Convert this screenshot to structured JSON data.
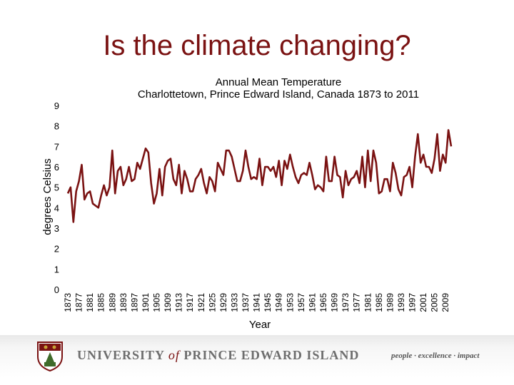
{
  "slide": {
    "title": "Is the climate changing?"
  },
  "chart_data": {
    "type": "line",
    "title": "Annual Mean Temperature",
    "subtitle": "Charlottetown, Prince Edward Island, Canada  1873 to 2011",
    "xlabel": "Year",
    "ylabel": "degrees Celsius",
    "ylim": [
      0,
      9
    ],
    "yticks": [
      0,
      1,
      2,
      3,
      4,
      5,
      6,
      7,
      8,
      9
    ],
    "xticks": [
      "1873",
      "1877",
      "1881",
      "1885",
      "1889",
      "1893",
      "1897",
      "1901",
      "1905",
      "1909",
      "1913",
      "1917",
      "1921",
      "1925",
      "1929",
      "1933",
      "1937",
      "1941",
      "1945",
      "1949",
      "1953",
      "1957",
      "1961",
      "1965",
      "1969",
      "1973",
      "1977",
      "1981",
      "1985",
      "1989",
      "1993",
      "1997",
      "2001",
      "2005",
      "2009"
    ],
    "x_start": 1873,
    "x_end": 2011,
    "line_color": "#7a1212",
    "series": [
      {
        "name": "Annual Mean Temperature",
        "values": [
          4.7,
          5.0,
          3.3,
          4.8,
          5.3,
          6.1,
          4.4,
          4.7,
          4.8,
          4.2,
          4.1,
          4.0,
          4.6,
          5.1,
          4.6,
          5.0,
          6.8,
          4.7,
          5.8,
          6.0,
          5.1,
          5.4,
          6.0,
          5.3,
          5.4,
          6.2,
          5.9,
          6.4,
          6.9,
          6.7,
          5.2,
          4.2,
          4.7,
          5.9,
          4.6,
          6.0,
          6.3,
          6.4,
          5.4,
          5.1,
          6.1,
          4.7,
          5.8,
          5.4,
          4.8,
          4.8,
          5.4,
          5.6,
          5.9,
          5.2,
          4.7,
          5.5,
          5.3,
          4.8,
          6.2,
          5.9,
          5.6,
          6.8,
          6.8,
          6.5,
          5.9,
          5.3,
          5.3,
          5.8,
          6.8,
          6.0,
          5.4,
          5.5,
          5.4,
          6.4,
          5.1,
          6.0,
          6.0,
          5.8,
          6.0,
          5.5,
          6.3,
          5.1,
          6.3,
          5.9,
          6.6,
          6.0,
          5.5,
          5.2,
          5.6,
          5.7,
          5.6,
          6.2,
          5.6,
          4.9,
          5.1,
          5.0,
          4.8,
          6.5,
          5.3,
          5.3,
          6.5,
          5.6,
          5.5,
          4.5,
          5.8,
          5.1,
          5.4,
          5.5,
          5.8,
          5.2,
          6.5,
          5.0,
          6.8,
          5.3,
          6.8,
          6.2,
          4.7,
          4.8,
          5.4,
          5.4,
          4.8,
          6.2,
          5.7,
          4.9,
          4.6,
          5.5,
          5.6,
          6.0,
          5.0,
          6.5,
          7.6,
          6.2,
          6.6,
          6.0,
          6.0,
          5.7,
          6.4,
          7.6,
          5.8,
          6.6,
          6.2,
          7.8,
          7.0
        ]
      }
    ]
  },
  "footer": {
    "university_part1": "UNIVERSITY",
    "university_of": "of",
    "university_part2": "PRINCE EDWARD ISLAND",
    "tagline": "people · excellence · impact",
    "colors": {
      "maroon": "#7a1212",
      "gold": "#c8a436",
      "green": "#3f6b2a"
    }
  }
}
